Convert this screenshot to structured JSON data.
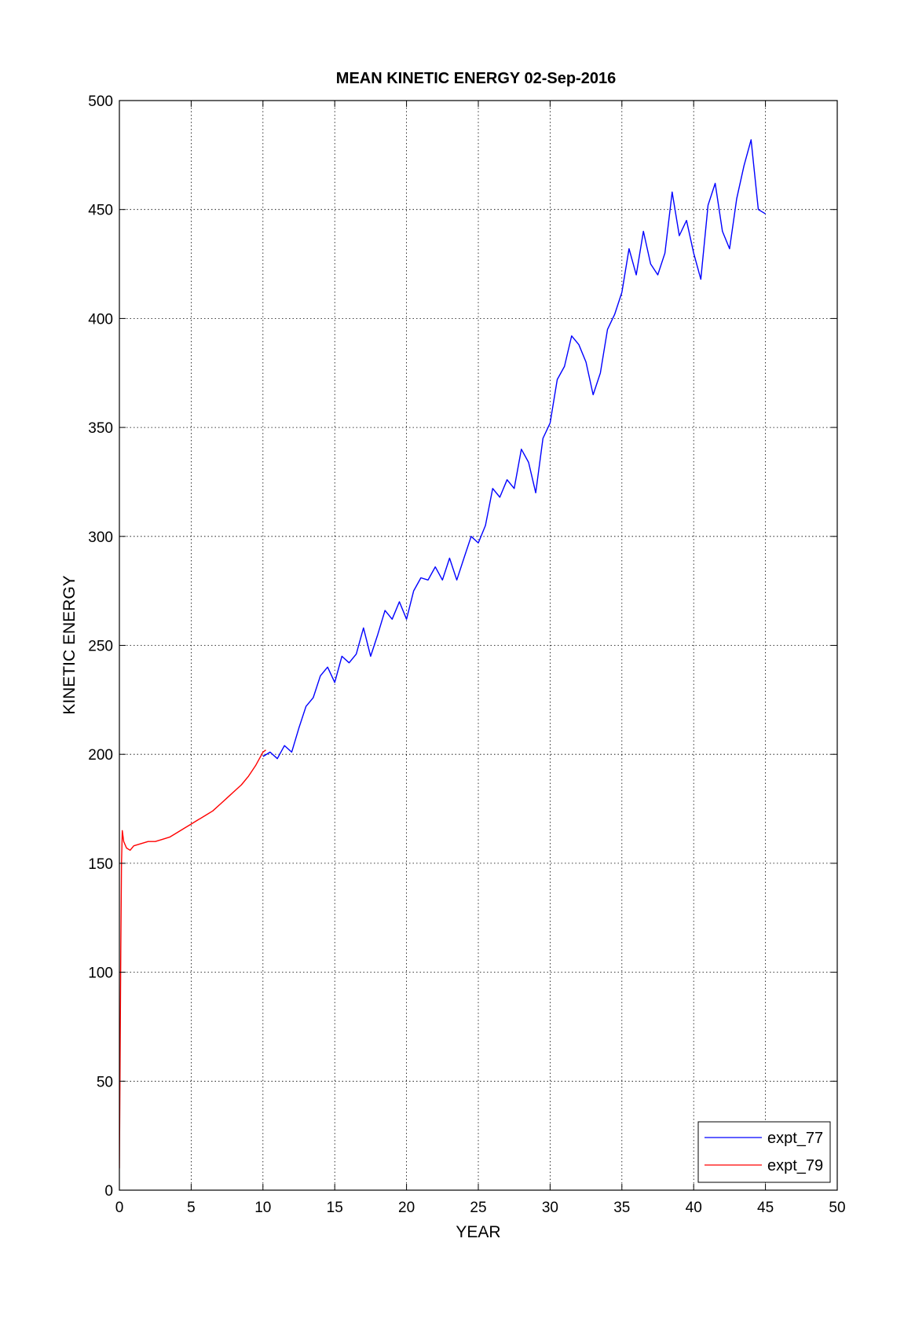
{
  "chart_data": {
    "type": "line",
    "title": "MEAN KINETIC ENERGY 02-Sep-2016",
    "xlabel": "YEAR",
    "ylabel": "KINETIC ENERGY",
    "xlim": [
      0,
      50
    ],
    "ylim": [
      0,
      500
    ],
    "x_ticks": [
      0,
      5,
      10,
      15,
      20,
      25,
      30,
      35,
      40,
      45,
      50
    ],
    "y_ticks": [
      0,
      50,
      100,
      150,
      200,
      250,
      300,
      350,
      400,
      450,
      500
    ],
    "grid": true,
    "legend_position": "bottom-right",
    "series": [
      {
        "name": "expt_77",
        "color": "#0000ff",
        "x": [
          10.0,
          10.5,
          11.0,
          11.5,
          12.0,
          12.5,
          13.0,
          13.5,
          14.0,
          14.5,
          15.0,
          15.5,
          16.0,
          16.5,
          17.0,
          17.5,
          18.0,
          18.5,
          19.0,
          19.5,
          20.0,
          20.5,
          21.0,
          21.5,
          22.0,
          22.5,
          23.0,
          23.5,
          24.0,
          24.5,
          25.0,
          25.5,
          26.0,
          26.5,
          27.0,
          27.5,
          28.0,
          28.5,
          29.0,
          29.5,
          30.0,
          30.5,
          31.0,
          31.5,
          32.0,
          32.5,
          33.0,
          33.5,
          34.0,
          34.5,
          35.0,
          35.5,
          36.0,
          36.5,
          37.0,
          37.5,
          38.0,
          38.5,
          39.0,
          39.5,
          40.0,
          40.5,
          41.0,
          41.5,
          42.0,
          42.5,
          43.0,
          43.5,
          44.0,
          44.5,
          45.0
        ],
        "values": [
          199,
          201,
          198,
          204,
          201,
          212,
          222,
          226,
          236,
          240,
          233,
          245,
          242,
          246,
          258,
          245,
          255,
          266,
          262,
          270,
          262,
          275,
          281,
          280,
          286,
          280,
          290,
          280,
          290,
          300,
          297,
          305,
          322,
          318,
          326,
          322,
          340,
          334,
          320,
          345,
          352,
          372,
          378,
          392,
          388,
          380,
          365,
          375,
          395,
          402,
          412,
          432,
          420,
          440,
          425,
          420,
          430,
          458,
          438,
          445,
          430,
          418,
          452,
          462,
          440,
          432,
          455,
          470,
          482,
          450,
          448
        ]
      },
      {
        "name": "expt_79",
        "color": "#ff0000",
        "x": [
          0.0,
          0.05,
          0.1,
          0.15,
          0.2,
          0.3,
          0.5,
          0.75,
          1.0,
          1.5,
          2.0,
          2.5,
          3.0,
          3.5,
          4.0,
          4.5,
          5.0,
          5.5,
          6.0,
          6.5,
          7.0,
          7.5,
          8.0,
          8.5,
          9.0,
          9.5,
          10.0,
          10.2
        ],
        "values": [
          10,
          60,
          110,
          150,
          165,
          160,
          157,
          156,
          158,
          159,
          160,
          160,
          161,
          162,
          164,
          166,
          168,
          170,
          172,
          174,
          177,
          180,
          183,
          186,
          190,
          195,
          201,
          202
        ]
      }
    ]
  }
}
